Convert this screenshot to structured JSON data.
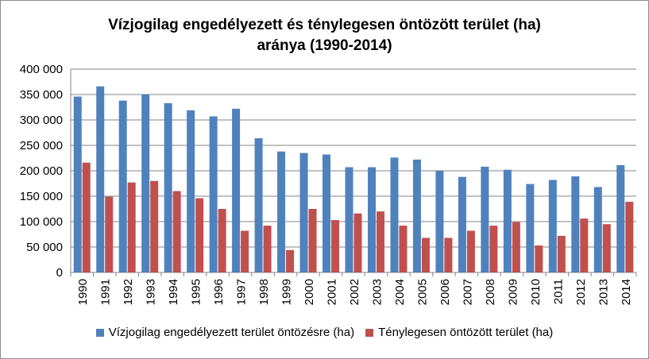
{
  "chart_data": {
    "type": "bar",
    "title": "Vízjogilag engedélyezett és ténylegesen öntözött terület (ha) aránya (1990-2014)",
    "title_lines": [
      "Vízjogilag engedélyezett és ténylegesen öntözött terület (ha)",
      "aránya (1990-2014)"
    ],
    "xlabel": "",
    "ylabel": "",
    "ylim": [
      0,
      400000
    ],
    "y_ticks": [
      0,
      50000,
      100000,
      150000,
      200000,
      250000,
      300000,
      350000,
      400000
    ],
    "y_tick_labels": [
      "0",
      "50 000",
      "100 000",
      "150 000",
      "200 000",
      "250 000",
      "300 000",
      "350 000",
      "400 000"
    ],
    "grid": true,
    "legend_position": "bottom",
    "categories": [
      "1990",
      "1991",
      "1992",
      "1993",
      "1994",
      "1995",
      "1996",
      "1997",
      "1998",
      "1999",
      "2000",
      "2001",
      "2002",
      "2003",
      "2004",
      "2005",
      "2006",
      "2007",
      "2008",
      "2009",
      "2010",
      "2011",
      "2012",
      "2013",
      "2014"
    ],
    "series": [
      {
        "name": "Vízjogilag engedélyezett terület öntözésre (ha)",
        "color": "#4f81bd",
        "values": [
          346000,
          366000,
          338000,
          350000,
          333000,
          319000,
          307000,
          322000,
          264000,
          238000,
          235000,
          232000,
          207000,
          207000,
          226000,
          222000,
          200000,
          188000,
          208000,
          202000,
          174000,
          182000,
          189000,
          168000,
          211000
        ]
      },
      {
        "name": "Ténylegesen öntözött terület (ha)",
        "color": "#c0504d",
        "values": [
          216000,
          149000,
          177000,
          180000,
          160000,
          146000,
          125000,
          82000,
          92000,
          44000,
          125000,
          103000,
          116000,
          120000,
          92000,
          68000,
          68000,
          82000,
          92000,
          99000,
          53000,
          72000,
          106000,
          95000,
          139000
        ]
      }
    ]
  }
}
